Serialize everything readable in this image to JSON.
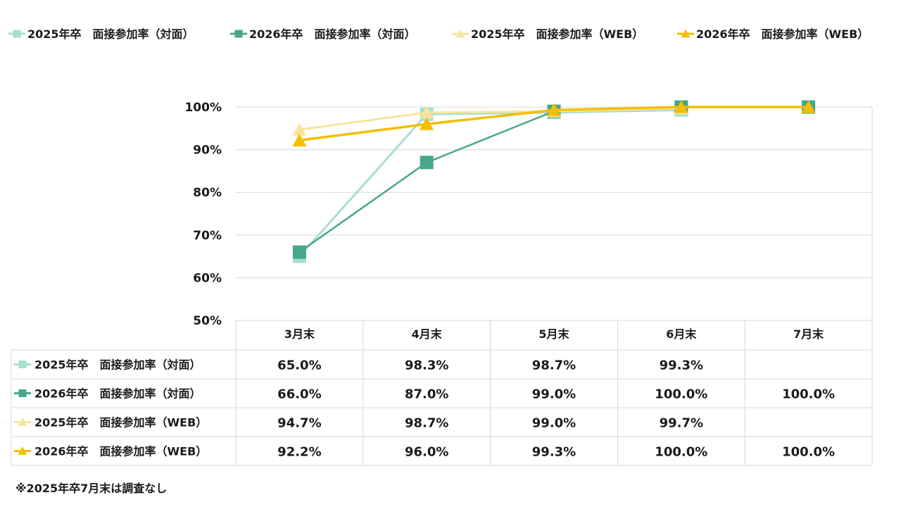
{
  "chart_data": {
    "type": "line",
    "categories": [
      "3月末",
      "4月末",
      "5月末",
      "6月末",
      "7月末"
    ],
    "y_axis": {
      "ticks": [
        "100%",
        "90%",
        "80%",
        "70%",
        "60%",
        "50%"
      ],
      "ylim": [
        50,
        100
      ],
      "grid": true
    },
    "legend_position": "top",
    "series": [
      {
        "name": "2025年卒　面接参加率（対面）",
        "marker": "square",
        "color": "#A9DFD1",
        "values": [
          65.0,
          98.3,
          98.7,
          99.3,
          null
        ],
        "table": [
          "65.0%",
          "98.3%",
          "98.7%",
          "99.3%",
          ""
        ]
      },
      {
        "name": "2026年卒　面接参加率（対面）",
        "marker": "square",
        "color": "#47A68C",
        "values": [
          66.0,
          87.0,
          99.0,
          100.0,
          100.0
        ],
        "table": [
          "66.0%",
          "87.0%",
          "99.0%",
          "100.0%",
          "100.0%"
        ]
      },
      {
        "name": "2025年卒　面接参加率（WEB）",
        "marker": "triangle",
        "color": "#F8E4A0",
        "values": [
          94.7,
          98.7,
          99.0,
          99.7,
          null
        ],
        "table": [
          "94.7%",
          "98.7%",
          "99.0%",
          "99.7%",
          ""
        ]
      },
      {
        "name": "2026年卒　面接参加率（WEB）",
        "marker": "triangle",
        "color": "#F5BE00",
        "values": [
          92.2,
          96.0,
          99.3,
          100.0,
          100.0
        ],
        "table": [
          "92.2%",
          "96.0%",
          "99.3%",
          "100.0%",
          "100.0%"
        ]
      }
    ],
    "note": "※2025年卒7月末は調査なし"
  }
}
